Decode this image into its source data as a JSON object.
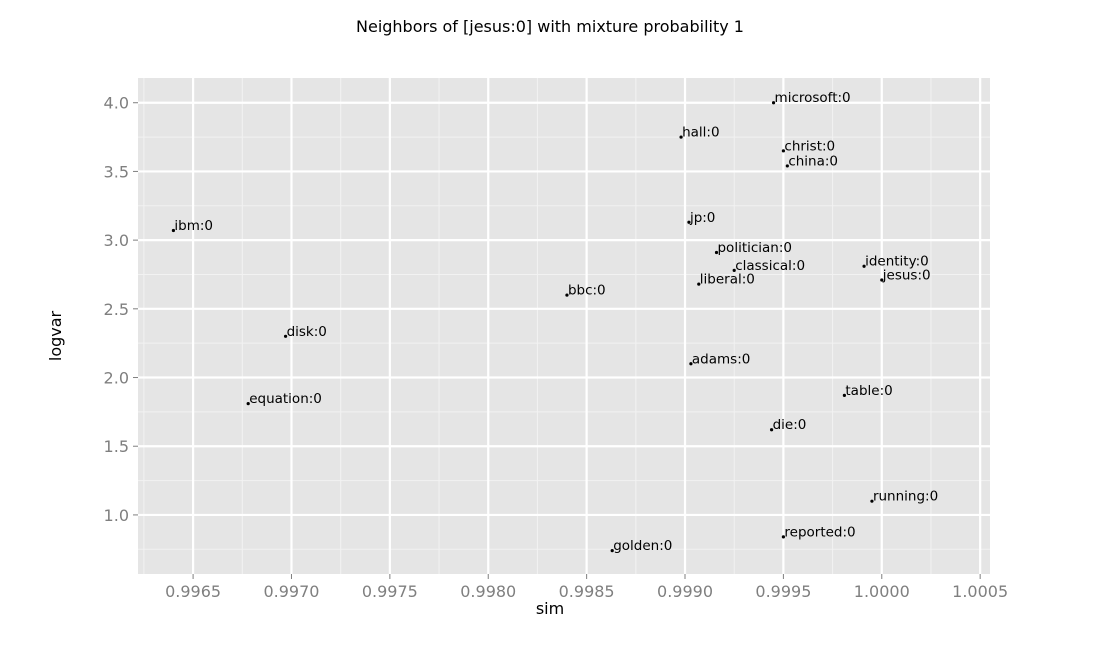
{
  "chart_data": {
    "type": "scatter",
    "title": "Neighbors of [jesus:0] with mixture probability 1",
    "xlabel": "sim",
    "ylabel": "logvar",
    "xlim": [
      0.99622,
      1.00055
    ],
    "ylim": [
      0.57,
      4.18
    ],
    "x_ticks": [
      0.9965,
      0.997,
      0.9975,
      0.998,
      0.9985,
      0.999,
      0.9995,
      1.0,
      1.0005
    ],
    "x_tick_labels": [
      "0.9965",
      "0.9970",
      "0.9975",
      "0.9980",
      "0.9985",
      "0.9990",
      "0.9995",
      "1.0000",
      "1.0005"
    ],
    "y_ticks": [
      1.0,
      1.5,
      2.0,
      2.5,
      3.0,
      3.5,
      4.0
    ],
    "y_tick_labels": [
      "1.0",
      "1.5",
      "2.0",
      "2.5",
      "3.0",
      "3.5",
      "4.0"
    ],
    "grid": true,
    "panel_background": "#e5e5e5",
    "grid_major_color": "#ffffff",
    "grid_minor_color": "#f2f2f2",
    "point_color": "#000000",
    "points": [
      {
        "label": "microsoft:0",
        "x": 0.99945,
        "y": 4.0
      },
      {
        "label": "hall:0",
        "x": 0.99898,
        "y": 3.75
      },
      {
        "label": "christ:0",
        "x": 0.9995,
        "y": 3.65
      },
      {
        "label": "china:0",
        "x": 0.99952,
        "y": 3.54
      },
      {
        "label": "ibm:0",
        "x": 0.9964,
        "y": 3.07
      },
      {
        "label": "jp:0",
        "x": 0.99902,
        "y": 3.13
      },
      {
        "label": "politician:0",
        "x": 0.99916,
        "y": 2.91
      },
      {
        "label": "identity:0",
        "x": 0.99991,
        "y": 2.81
      },
      {
        "label": "classical:0",
        "x": 0.99925,
        "y": 2.78
      },
      {
        "label": "jesus:0",
        "x": 1.0,
        "y": 2.71
      },
      {
        "label": "liberal:0",
        "x": 0.99907,
        "y": 2.68
      },
      {
        "label": "bbc:0",
        "x": 0.9984,
        "y": 2.6
      },
      {
        "label": "disk:0",
        "x": 0.99697,
        "y": 2.3
      },
      {
        "label": "adams:0",
        "x": 0.99903,
        "y": 2.1
      },
      {
        "label": "table:0",
        "x": 0.99981,
        "y": 1.87
      },
      {
        "label": "equation:0",
        "x": 0.99678,
        "y": 1.81
      },
      {
        "label": "die:0",
        "x": 0.99944,
        "y": 1.62
      },
      {
        "label": "running:0",
        "x": 0.99995,
        "y": 1.1
      },
      {
        "label": "reported:0",
        "x": 0.9995,
        "y": 0.84
      },
      {
        "label": "golden:0",
        "x": 0.99863,
        "y": 0.74
      }
    ]
  }
}
